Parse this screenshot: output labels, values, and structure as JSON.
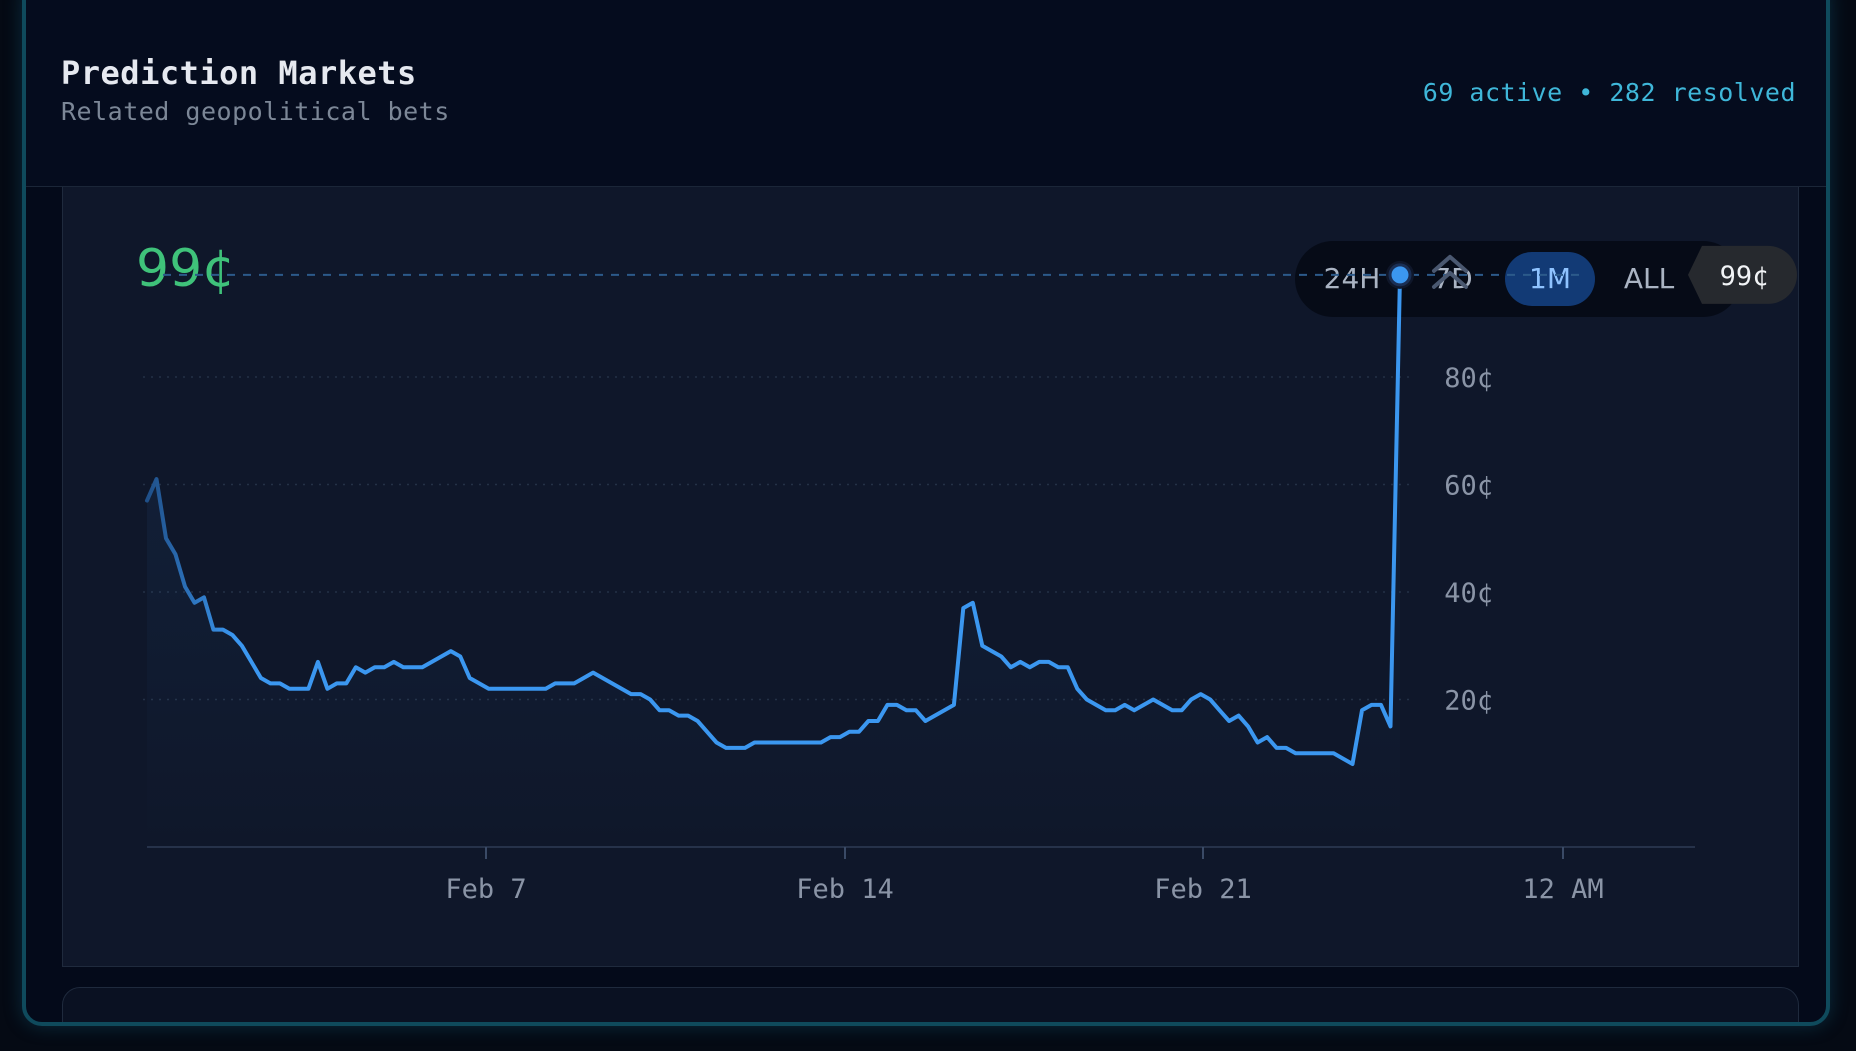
{
  "header": {
    "title": "Prediction Markets",
    "subtitle": "Related geopolitical bets",
    "stats": "69 active • 282 resolved"
  },
  "market": {
    "price_label": "99¢",
    "timeframes": [
      "24H",
      "7D",
      "1M",
      "ALL"
    ],
    "active_timeframe": "1M"
  },
  "colors": {
    "line": "#3b97f0",
    "price_green": "#3fc27a",
    "accent_cyan": "#3fb7d9"
  },
  "chart_data": {
    "type": "line",
    "title": "",
    "xlabel": "",
    "ylabel": "",
    "x_tick_labels": [
      "Feb 7",
      "Feb 14",
      "Feb 21",
      "12 AM"
    ],
    "y_tick_labels": [
      "20¢",
      "40¢",
      "60¢",
      "80¢"
    ],
    "ylim": [
      0,
      100
    ],
    "current_value": 99,
    "current_value_label": "99¢",
    "grid": true,
    "series": [
      {
        "values": [
          57,
          61,
          50,
          47,
          41,
          38,
          39,
          33,
          33,
          32,
          30,
          27,
          24,
          23,
          23,
          22,
          22,
          22,
          27,
          22,
          23,
          23,
          26,
          25,
          26,
          26,
          27,
          26,
          26,
          26,
          27,
          28,
          29,
          28,
          24,
          23,
          22,
          22,
          22,
          22,
          22,
          22,
          22,
          23,
          23,
          23,
          24,
          25,
          24,
          23,
          22,
          21,
          21,
          20,
          18,
          18,
          17,
          17,
          16,
          14,
          12,
          11,
          11,
          11,
          12,
          12,
          12,
          12,
          12,
          12,
          12,
          12,
          13,
          13,
          14,
          14,
          16,
          16,
          19,
          19,
          18,
          18,
          16,
          17,
          18,
          19,
          37,
          38,
          30,
          29,
          28,
          26,
          27,
          26,
          27,
          27,
          26,
          26,
          22,
          20,
          19,
          18,
          18,
          19,
          18,
          19,
          20,
          19,
          18,
          18,
          20,
          21,
          20,
          18,
          16,
          17,
          15,
          12,
          13,
          11,
          11,
          10,
          10,
          10,
          10,
          10,
          9,
          8,
          18,
          19,
          19,
          15,
          99
        ]
      }
    ]
  }
}
